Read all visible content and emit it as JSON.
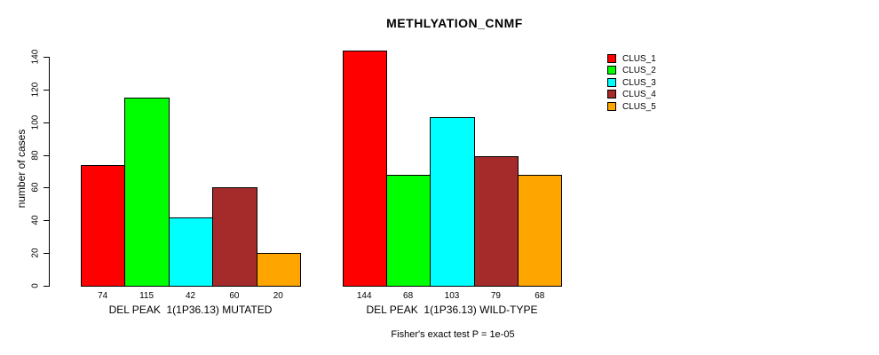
{
  "chart_data": {
    "type": "bar",
    "title": "METHLYATION_CNMF",
    "ylabel": "number of cases",
    "ylim": [
      0,
      140
    ],
    "yticks": [
      0,
      20,
      40,
      60,
      80,
      100,
      120,
      140
    ],
    "grid": false,
    "legend_position": "right",
    "series_colors": [
      "#FF0000",
      "#00FF00",
      "#00FFFF",
      "#A52A2A",
      "#FFA500"
    ],
    "legend": [
      "CLUS_1",
      "CLUS_2",
      "CLUS_3",
      "CLUS_4",
      "CLUS_5"
    ],
    "groups": [
      {
        "label": "DEL PEAK  1(1P36.13) MUTATED",
        "values": [
          74,
          115,
          42,
          60,
          20
        ]
      },
      {
        "label": "DEL PEAK  1(1P36.13) WILD-TYPE",
        "values": [
          144,
          68,
          103,
          79,
          68
        ]
      }
    ],
    "annotation": "Fisher's exact test P = 1e-05"
  }
}
